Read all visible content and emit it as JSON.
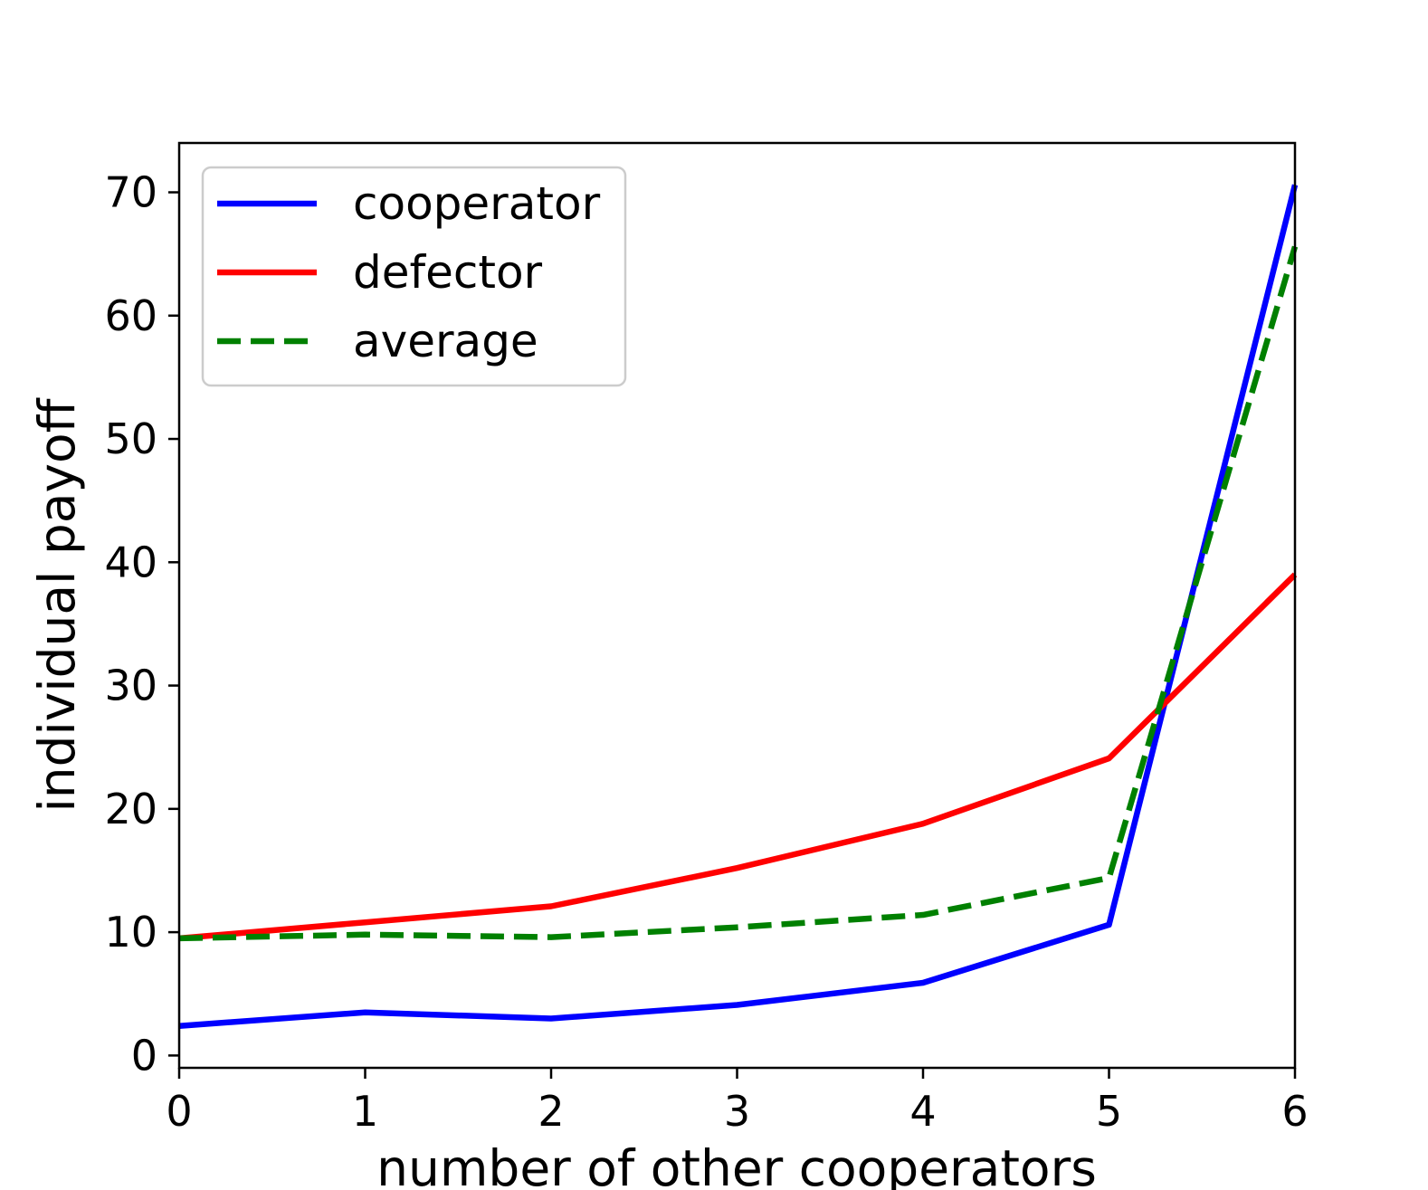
{
  "chart_data": {
    "type": "line",
    "title": "",
    "xlabel": "number of other cooperators",
    "ylabel": "individual payoff",
    "x": [
      0,
      1,
      2,
      3,
      4,
      5,
      6
    ],
    "xlim": [
      0,
      6
    ],
    "ylim": [
      -1,
      74
    ],
    "xticks": [
      0,
      1,
      2,
      3,
      4,
      5,
      6
    ],
    "yticks": [
      0,
      10,
      20,
      30,
      40,
      50,
      60,
      70
    ],
    "grid": false,
    "legend_position": "upper-left",
    "series": [
      {
        "name": "cooperator",
        "color": "#0000ff",
        "style": "solid",
        "values": [
          2.4,
          3.5,
          3.0,
          4.1,
          5.9,
          10.6,
          70.6
        ]
      },
      {
        "name": "defector",
        "color": "#ff0000",
        "style": "solid",
        "values": [
          9.5,
          10.8,
          12.1,
          15.2,
          18.8,
          24.1,
          39.0
        ]
      },
      {
        "name": "average",
        "color": "#008000",
        "style": "dashed",
        "values": [
          9.5,
          9.8,
          9.6,
          10.4,
          11.4,
          14.4,
          65.6
        ]
      }
    ]
  }
}
